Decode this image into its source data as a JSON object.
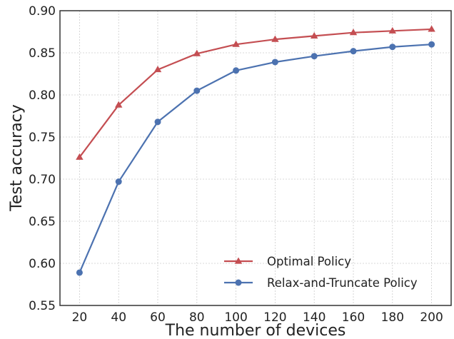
{
  "chart_data": {
    "type": "line",
    "title": "",
    "xlabel": "The number of devices",
    "ylabel": "Test accuracy",
    "x": [
      20,
      40,
      60,
      80,
      100,
      120,
      140,
      160,
      180,
      200
    ],
    "x_tick_labels": [
      "20",
      "40",
      "60",
      "80",
      "100",
      "120",
      "140",
      "160",
      "180",
      "200"
    ],
    "y_tick_labels": [
      "0.55",
      "0.60",
      "0.65",
      "0.70",
      "0.75",
      "0.80",
      "0.85",
      "0.90"
    ],
    "y_ticks": [
      0.55,
      0.6,
      0.65,
      0.7,
      0.75,
      0.8,
      0.85,
      0.9
    ],
    "xlim": [
      10,
      210
    ],
    "ylim": [
      0.55,
      0.9
    ],
    "grid": true,
    "legend_position": "lower-right",
    "series": [
      {
        "name": "Optimal Policy",
        "color": "#c44e52",
        "marker": "triangle",
        "values": [
          0.726,
          0.788,
          0.83,
          0.849,
          0.86,
          0.866,
          0.87,
          0.874,
          0.876,
          0.878
        ]
      },
      {
        "name": "Relax-and-Truncate Policy",
        "color": "#4c72b0",
        "marker": "circle",
        "values": [
          0.589,
          0.697,
          0.768,
          0.805,
          0.829,
          0.839,
          0.846,
          0.852,
          0.857,
          0.86
        ]
      }
    ]
  }
}
